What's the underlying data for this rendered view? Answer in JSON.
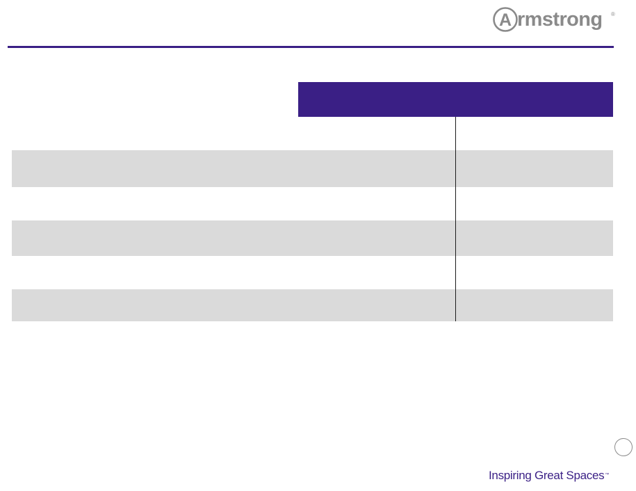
{
  "header": {
    "logo_text": "rmstrong",
    "logo_initial": "A",
    "logo_mark": "®"
  },
  "colors": {
    "brand_purple": "#3a1f85",
    "row_shade": "#dadada",
    "logo_gray": "#8a8a8a"
  },
  "footer": {
    "tagline": "Inspiring Great Spaces",
    "tagline_mark": "™"
  }
}
